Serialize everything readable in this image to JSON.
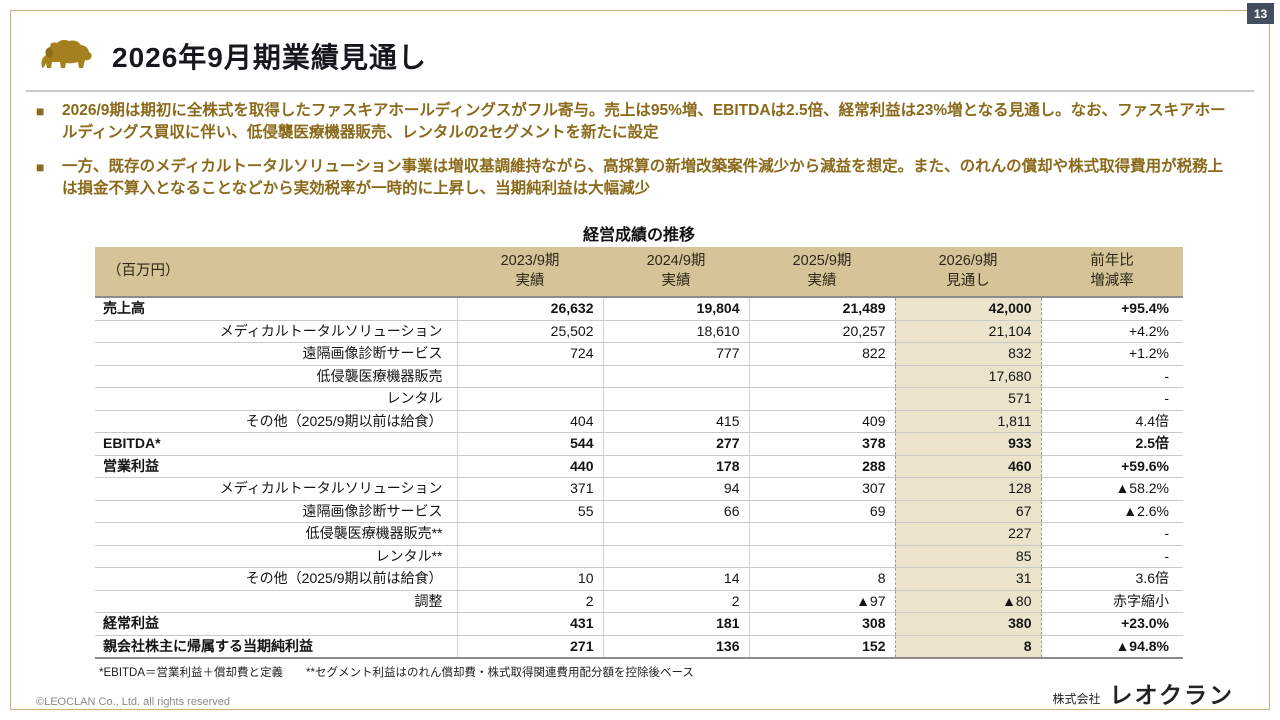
{
  "page_number": "13",
  "header": {
    "title": "2026年9月期業績見通し"
  },
  "bullets": [
    "2026/9期は期初に全株式を取得したファスキアホールディングスがフル寄与。売上は95%増、EBITDAは2.5倍、経常利益は23%増となる見通し。なお、ファスキアホールディングス買収に伴い、低侵襲医療機器販売、レンタルの2セグメントを新たに設定",
    "一方、既存のメディカルトータルソリューション事業は増収基調維持ながら、高採算の新増改築案件減少から減益を想定。また、のれんの償却や株式取得費用が税務上は損金不算入となることなどから実効税率が一時的に上昇し、当期純利益は大幅減少"
  ],
  "table": {
    "title": "経営成績の推移",
    "unit_label": "（百万円）",
    "columns": [
      "2023/9期\n実績",
      "2024/9期\n実績",
      "2025/9期\n実績",
      "2026/9期\n見通し",
      "前年比\n増減率"
    ],
    "rows": [
      {
        "label": "売上高",
        "bold": true,
        "values": [
          "26,632",
          "19,804",
          "21,489",
          "42,000"
        ],
        "yoy": "+95.4%"
      },
      {
        "label": "メディカルトータルソリューション",
        "bold": false,
        "values": [
          "25,502",
          "18,610",
          "20,257",
          "21,104"
        ],
        "yoy": "+4.2%"
      },
      {
        "label": "遠隔画像診断サービス",
        "bold": false,
        "values": [
          "724",
          "777",
          "822",
          "832"
        ],
        "yoy": "+1.2%"
      },
      {
        "label": "低侵襲医療機器販売",
        "bold": false,
        "values": [
          "",
          "",
          "",
          "17,680"
        ],
        "yoy": "-"
      },
      {
        "label": "レンタル",
        "bold": false,
        "values": [
          "",
          "",
          "",
          "571"
        ],
        "yoy": "-"
      },
      {
        "label": "その他（2025/9期以前は給食）",
        "bold": false,
        "values": [
          "404",
          "415",
          "409",
          "1,811"
        ],
        "yoy": "4.4倍"
      },
      {
        "label": "EBITDA*",
        "bold": true,
        "values": [
          "544",
          "277",
          "378",
          "933"
        ],
        "yoy": "2.5倍"
      },
      {
        "label": "営業利益",
        "bold": true,
        "values": [
          "440",
          "178",
          "288",
          "460"
        ],
        "yoy": "+59.6%"
      },
      {
        "label": "メディカルトータルソリューション",
        "bold": false,
        "values": [
          "371",
          "94",
          "307",
          "128"
        ],
        "yoy": "▲58.2%"
      },
      {
        "label": "遠隔画像診断サービス",
        "bold": false,
        "values": [
          "55",
          "66",
          "69",
          "67"
        ],
        "yoy": "▲2.6%"
      },
      {
        "label": "低侵襲医療機器販売**",
        "bold": false,
        "values": [
          "",
          "",
          "",
          "227"
        ],
        "yoy": "-"
      },
      {
        "label": "レンタル**",
        "bold": false,
        "values": [
          "",
          "",
          "",
          "85"
        ],
        "yoy": "-"
      },
      {
        "label": "その他（2025/9期以前は給食）",
        "bold": false,
        "values": [
          "10",
          "14",
          "8",
          "31"
        ],
        "yoy": "3.6倍"
      },
      {
        "label": "調整",
        "bold": false,
        "values": [
          "2",
          "2",
          "▲97",
          "▲80"
        ],
        "yoy": "赤字縮小"
      },
      {
        "label": "経常利益",
        "bold": true,
        "values": [
          "431",
          "181",
          "308",
          "380"
        ],
        "yoy": "+23.0%"
      },
      {
        "label": "親会社株主に帰属する当期純利益",
        "bold": true,
        "values": [
          "271",
          "136",
          "152",
          "8"
        ],
        "yoy": "▲94.8%"
      }
    ],
    "footnote": "*EBITDA＝営業利益＋償却費と定義　　**セグメント利益はのれん償却費・株式取得関連費用配分額を控除後ベース"
  },
  "footer": {
    "copyright": "©LEOCLAN Co., Ltd. all rights reserved",
    "company_prefix": "株式会社",
    "company_name": "レオクラン"
  },
  "colors": {
    "accent_gold": "#a5801f",
    "bullet_brown": "#8a6a1a",
    "header_tan": "#d4c498",
    "forecast_bg": "#ece3cc",
    "page_badge": "#434e5e"
  }
}
